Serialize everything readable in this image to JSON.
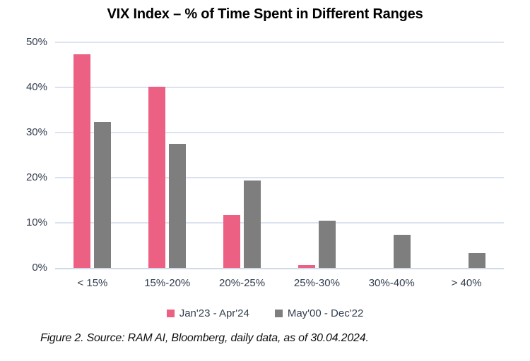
{
  "chart_data": {
    "type": "bar",
    "title": "VIX Index – % of Time Spent in Different Ranges",
    "categories": [
      "< 15%",
      "15%-20%",
      "20%-25%",
      "25%-30%",
      "30%-40%",
      "> 40%"
    ],
    "series": [
      {
        "name": "Jan'23 - Apr'24",
        "color": "#EC6183",
        "values": [
          47.4,
          40.1,
          11.7,
          0.7,
          0,
          0
        ]
      },
      {
        "name": "May'00 - Dec'22",
        "color": "#7E7E7E",
        "values": [
          32.3,
          27.5,
          19.4,
          10.4,
          7.4,
          3.3
        ]
      }
    ],
    "xlabel": "",
    "ylabel": "",
    "ylim": [
      0,
      50
    ],
    "ytick_step": 10,
    "ytick_suffix": "%",
    "grid": true,
    "gridline_color": "#DAE3EF",
    "axisline_color": "#D0DBE8",
    "legend_position": "bottom",
    "caption": "Figure 2. Source: RAM AI, Bloomberg, daily data, as of 30.04.2024."
  }
}
